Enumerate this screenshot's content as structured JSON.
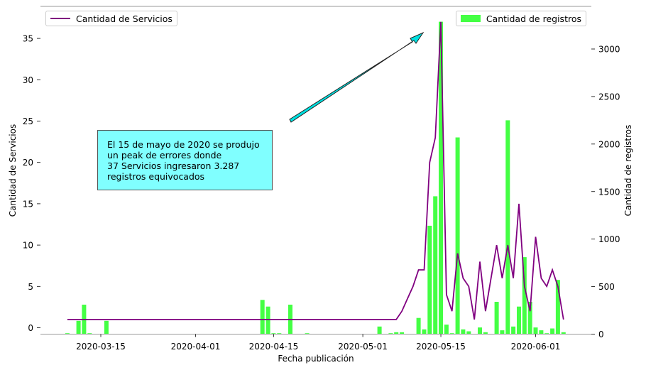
{
  "chart_data": {
    "type": "bar+line",
    "xlabel": "Fecha publicación",
    "ylabel_left": "Cantidad de Servicios",
    "ylabel_right": "Cantidad de registros",
    "x_ticks": [
      "2020-03-15",
      "2020-04-01",
      "2020-04-15",
      "2020-05-01",
      "2020-05-15",
      "2020-06-01"
    ],
    "y_left_ticks": [
      0,
      5,
      10,
      15,
      20,
      25,
      30,
      35
    ],
    "y_left_lim": [
      -0.8,
      38.5
    ],
    "y_right_ticks": [
      0,
      500,
      1000,
      1500,
      2000,
      2500,
      3000
    ],
    "y_right_lim": [
      0,
      3300
    ],
    "bars": {
      "name": "Cantidad de registros",
      "color": "#44ff44",
      "points": [
        {
          "date": "2020-03-09",
          "value": 10
        },
        {
          "date": "2020-03-11",
          "value": 140
        },
        {
          "date": "2020-03-12",
          "value": 310
        },
        {
          "date": "2020-03-13",
          "value": 10
        },
        {
          "date": "2020-03-16",
          "value": 140
        },
        {
          "date": "2020-04-13",
          "value": 360
        },
        {
          "date": "2020-04-14",
          "value": 290
        },
        {
          "date": "2020-04-15",
          "value": 10
        },
        {
          "date": "2020-04-16",
          "value": 10
        },
        {
          "date": "2020-04-18",
          "value": 310
        },
        {
          "date": "2020-04-21",
          "value": 10
        },
        {
          "date": "2020-05-04",
          "value": 80
        },
        {
          "date": "2020-05-06",
          "value": 10
        },
        {
          "date": "2020-05-07",
          "value": 20
        },
        {
          "date": "2020-05-08",
          "value": 20
        },
        {
          "date": "2020-05-11",
          "value": 170
        },
        {
          "date": "2020-05-12",
          "value": 50
        },
        {
          "date": "2020-05-13",
          "value": 1140
        },
        {
          "date": "2020-05-14",
          "value": 1450
        },
        {
          "date": "2020-05-15",
          "value": 3287
        },
        {
          "date": "2020-05-16",
          "value": 100
        },
        {
          "date": "2020-05-17",
          "value": 10
        },
        {
          "date": "2020-05-18",
          "value": 2070
        },
        {
          "date": "2020-05-19",
          "value": 50
        },
        {
          "date": "2020-05-20",
          "value": 30
        },
        {
          "date": "2020-05-22",
          "value": 70
        },
        {
          "date": "2020-05-23",
          "value": 20
        },
        {
          "date": "2020-05-25",
          "value": 340
        },
        {
          "date": "2020-05-26",
          "value": 40
        },
        {
          "date": "2020-05-27",
          "value": 2250
        },
        {
          "date": "2020-05-28",
          "value": 80
        },
        {
          "date": "2020-05-29",
          "value": 290
        },
        {
          "date": "2020-05-30",
          "value": 810
        },
        {
          "date": "2020-05-31",
          "value": 340
        },
        {
          "date": "2020-06-01",
          "value": 70
        },
        {
          "date": "2020-06-02",
          "value": 40
        },
        {
          "date": "2020-06-03",
          "value": 10
        },
        {
          "date": "2020-06-04",
          "value": 60
        },
        {
          "date": "2020-06-05",
          "value": 570
        },
        {
          "date": "2020-06-06",
          "value": 20
        }
      ]
    },
    "line": {
      "name": "Cantidad de Servicios",
      "color": "#800080",
      "points": [
        {
          "date": "2020-03-09",
          "value": 1
        },
        {
          "date": "2020-05-07",
          "value": 1
        },
        {
          "date": "2020-05-08",
          "value": 2
        },
        {
          "date": "2020-05-09",
          "value": 3.5
        },
        {
          "date": "2020-05-10",
          "value": 5
        },
        {
          "date": "2020-05-11",
          "value": 7
        },
        {
          "date": "2020-05-12",
          "value": 7
        },
        {
          "date": "2020-05-13",
          "value": 20
        },
        {
          "date": "2020-05-14",
          "value": 23
        },
        {
          "date": "2020-05-15",
          "value": 37
        },
        {
          "date": "2020-05-16",
          "value": 4
        },
        {
          "date": "2020-05-17",
          "value": 2
        },
        {
          "date": "2020-05-18",
          "value": 9
        },
        {
          "date": "2020-05-19",
          "value": 6
        },
        {
          "date": "2020-05-20",
          "value": 5
        },
        {
          "date": "2020-05-21",
          "value": 1
        },
        {
          "date": "2020-05-22",
          "value": 8
        },
        {
          "date": "2020-05-23",
          "value": 2
        },
        {
          "date": "2020-05-24",
          "value": 6
        },
        {
          "date": "2020-05-25",
          "value": 10
        },
        {
          "date": "2020-05-26",
          "value": 6
        },
        {
          "date": "2020-05-27",
          "value": 10
        },
        {
          "date": "2020-05-28",
          "value": 6
        },
        {
          "date": "2020-05-29",
          "value": 15
        },
        {
          "date": "2020-05-30",
          "value": 5
        },
        {
          "date": "2020-05-31",
          "value": 2
        },
        {
          "date": "2020-06-01",
          "value": 11
        },
        {
          "date": "2020-06-02",
          "value": 6
        },
        {
          "date": "2020-06-03",
          "value": 5
        },
        {
          "date": "2020-06-04",
          "value": 7
        },
        {
          "date": "2020-06-05",
          "value": 5
        },
        {
          "date": "2020-06-06",
          "value": 1
        }
      ]
    },
    "annotation": {
      "text": "El 15 de mayo de 2020 se produjo\nun peak de errores donde\n37 Servicios ingresaron 3.287\nregistros equivocados",
      "background": "#80ffff",
      "arrow_color": "#00e0e0"
    },
    "legend_left": "top-left",
    "legend_right": "top-right",
    "grid": false
  }
}
